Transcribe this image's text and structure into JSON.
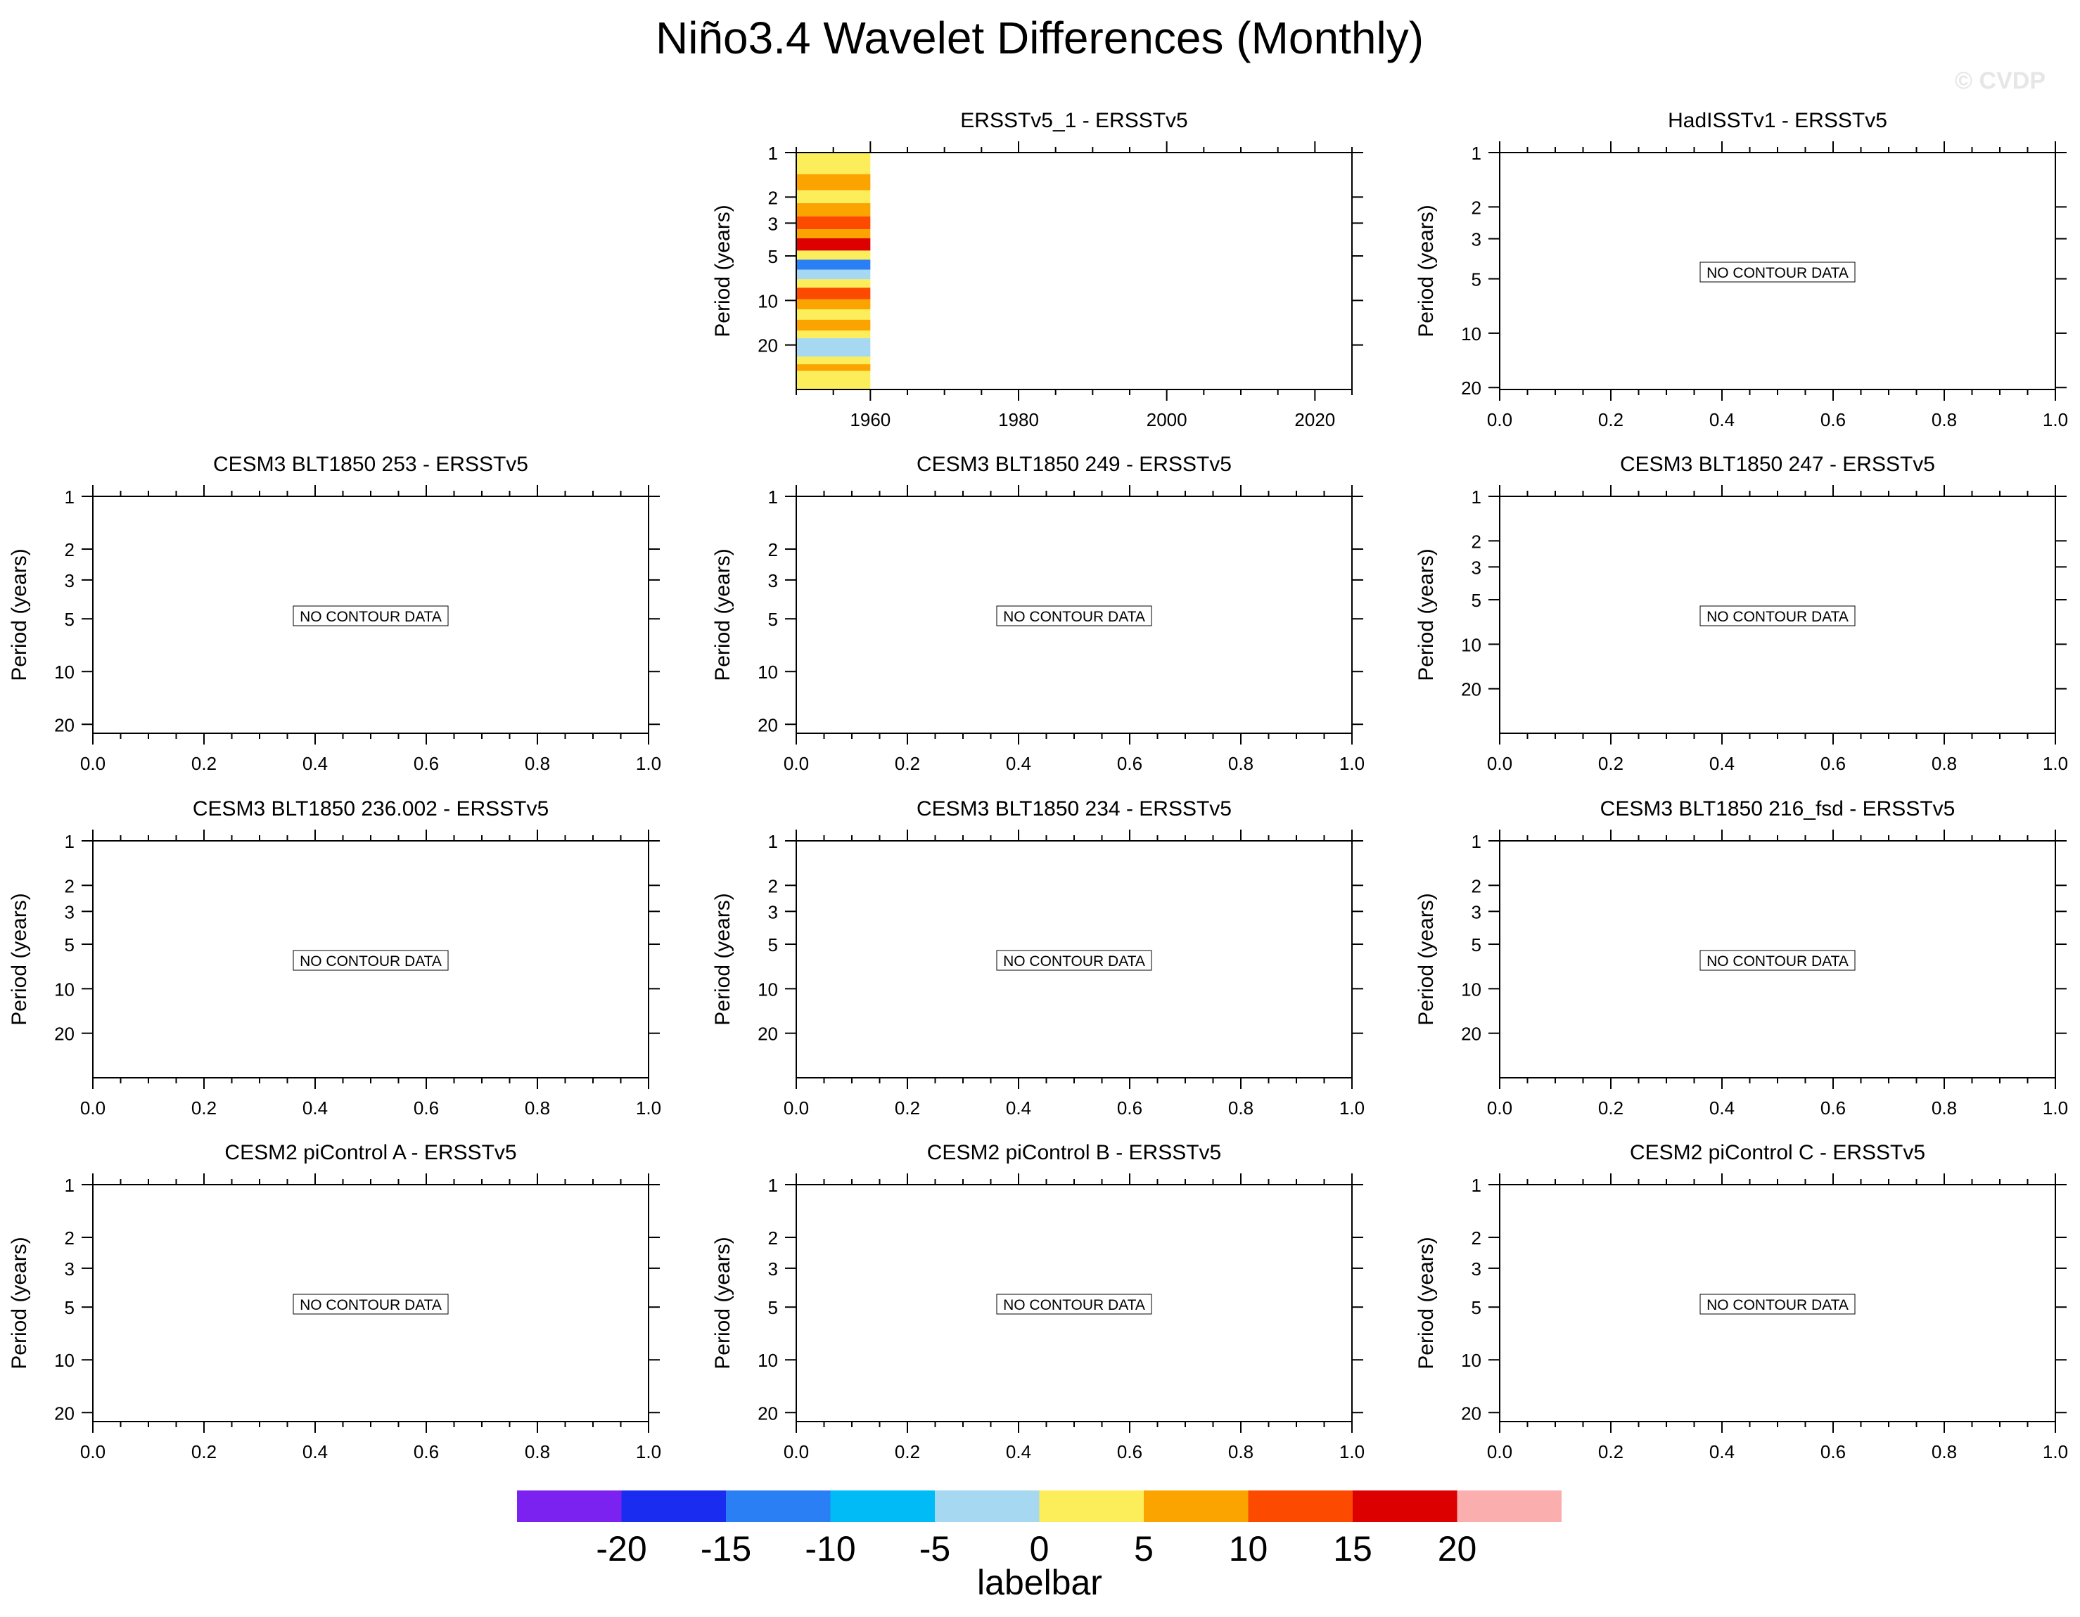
{
  "title": "Niño3.4 Wavelet Differences (Monthly)",
  "watermark": "© CVDP",
  "ylabel": "Period (years)",
  "no_data_label": "NO CONTOUR DATA",
  "colorbar": {
    "label": "labelbar",
    "colors": [
      "#7b22f0",
      "#1a2cf0",
      "#2a7ff5",
      "#00bbf5",
      "#a6d8f2",
      "#fbee5a",
      "#fba400",
      "#fc4a00",
      "#dc0000",
      "#fbaeae"
    ],
    "tick_labels": [
      "-20",
      "-15",
      "-10",
      "-5",
      "0",
      "5",
      "10",
      "15",
      "20"
    ]
  },
  "chart_data": [
    {
      "type": "heatmap",
      "title": "ERSSTv5_1 - ERSSTv5",
      "ylabel": "Period (years)",
      "x_ticks": [
        "1960",
        "1980",
        "2000",
        "2020"
      ],
      "x_tick_values": [
        1960,
        1980,
        2000,
        2020
      ],
      "xlim": [
        1950,
        2025
      ],
      "y_ticks": [
        "1",
        "2",
        "3",
        "5",
        "10",
        "20"
      ],
      "y_tick_values": [
        1,
        2,
        3,
        5,
        10,
        20
      ],
      "ylim": [
        1,
        40
      ],
      "y_scale": "log",
      "data_x_range": [
        1950,
        1960
      ],
      "bands": [
        {
          "from": 1.0,
          "to": 1.4,
          "value": 0
        },
        {
          "from": 1.4,
          "to": 1.8,
          "value": 5
        },
        {
          "from": 1.8,
          "to": 2.2,
          "value": 0
        },
        {
          "from": 2.2,
          "to": 2.7,
          "value": 5
        },
        {
          "from": 2.7,
          "to": 3.3,
          "value": 10
        },
        {
          "from": 3.3,
          "to": 3.8,
          "value": 5
        },
        {
          "from": 3.8,
          "to": 4.6,
          "value": 15
        },
        {
          "from": 4.6,
          "to": 5.3,
          "value": 0
        },
        {
          "from": 5.3,
          "to": 6.2,
          "value": -15
        },
        {
          "from": 6.2,
          "to": 7.2,
          "value": -5
        },
        {
          "from": 7.2,
          "to": 8.2,
          "value": 0
        },
        {
          "from": 8.2,
          "to": 9.8,
          "value": 10
        },
        {
          "from": 9.8,
          "to": 11.5,
          "value": 5
        },
        {
          "from": 11.5,
          "to": 13.5,
          "value": 0
        },
        {
          "from": 13.5,
          "to": 16,
          "value": 5
        },
        {
          "from": 16,
          "to": 18,
          "value": 0
        },
        {
          "from": 18,
          "to": 24,
          "value": -5
        },
        {
          "from": 24,
          "to": 27,
          "value": 0
        },
        {
          "from": 27,
          "to": 30,
          "value": 5
        },
        {
          "from": 30,
          "to": 40,
          "value": 0
        }
      ]
    },
    {
      "type": "heatmap",
      "title": "HadISSTv1 - ERSSTv5",
      "ylabel": "Period (years)",
      "no_data": true,
      "x_ticks": [
        "0.0",
        "0.2",
        "0.4",
        "0.6",
        "0.8",
        "1.0"
      ],
      "x_tick_values": [
        0,
        0.2,
        0.4,
        0.6,
        0.8,
        1.0
      ],
      "xlim": [
        0,
        1
      ],
      "y_ticks": [
        "1",
        "2",
        "3",
        "5",
        "10",
        "20"
      ],
      "y_tick_values": [
        1,
        2,
        3,
        5,
        10,
        20
      ],
      "ylim": [
        1,
        20.5
      ]
    },
    {
      "type": "heatmap",
      "title": "CESM3 BLT1850 253 - ERSSTv5",
      "ylabel": "Period (years)",
      "no_data": true,
      "x_ticks": [
        "0.0",
        "0.2",
        "0.4",
        "0.6",
        "0.8",
        "1.0"
      ],
      "x_tick_values": [
        0,
        0.2,
        0.4,
        0.6,
        0.8,
        1.0
      ],
      "xlim": [
        0,
        1
      ],
      "y_ticks": [
        "1",
        "2",
        "3",
        "5",
        "10",
        "20"
      ],
      "y_tick_values": [
        1,
        2,
        3,
        5,
        10,
        20
      ],
      "ylim": [
        1,
        22.5
      ]
    },
    {
      "type": "heatmap",
      "title": "CESM3 BLT1850 249 - ERSSTv5",
      "ylabel": "Period (years)",
      "no_data": true,
      "x_ticks": [
        "0.0",
        "0.2",
        "0.4",
        "0.6",
        "0.8",
        "1.0"
      ],
      "x_tick_values": [
        0,
        0.2,
        0.4,
        0.6,
        0.8,
        1.0
      ],
      "xlim": [
        0,
        1
      ],
      "y_ticks": [
        "1",
        "2",
        "3",
        "5",
        "10",
        "20"
      ],
      "y_tick_values": [
        1,
        2,
        3,
        5,
        10,
        20
      ],
      "ylim": [
        1,
        22.5
      ]
    },
    {
      "type": "heatmap",
      "title": "CESM3 BLT1850 247 - ERSSTv5",
      "ylabel": "Period (years)",
      "no_data": true,
      "x_ticks": [
        "0.0",
        "0.2",
        "0.4",
        "0.6",
        "0.8",
        "1.0"
      ],
      "x_tick_values": [
        0,
        0.2,
        0.4,
        0.6,
        0.8,
        1.0
      ],
      "xlim": [
        0,
        1
      ],
      "y_ticks": [
        "1",
        "2",
        "3",
        "5",
        "10",
        "20"
      ],
      "y_tick_values": [
        1,
        2,
        3,
        5,
        10,
        20
      ],
      "ylim": [
        1,
        40
      ]
    },
    {
      "type": "heatmap",
      "title": "CESM3 BLT1850 236.002 - ERSSTv5",
      "ylabel": "Period (years)",
      "no_data": true,
      "x_ticks": [
        "0.0",
        "0.2",
        "0.4",
        "0.6",
        "0.8",
        "1.0"
      ],
      "x_tick_values": [
        0,
        0.2,
        0.4,
        0.6,
        0.8,
        1.0
      ],
      "xlim": [
        0,
        1
      ],
      "y_ticks": [
        "1",
        "2",
        "3",
        "5",
        "10",
        "20"
      ],
      "y_tick_values": [
        1,
        2,
        3,
        5,
        10,
        20
      ],
      "ylim": [
        1,
        40
      ]
    },
    {
      "type": "heatmap",
      "title": "CESM3 BLT1850 234 - ERSSTv5",
      "ylabel": "Period (years)",
      "no_data": true,
      "x_ticks": [
        "0.0",
        "0.2",
        "0.4",
        "0.6",
        "0.8",
        "1.0"
      ],
      "x_tick_values": [
        0,
        0.2,
        0.4,
        0.6,
        0.8,
        1.0
      ],
      "xlim": [
        0,
        1
      ],
      "y_ticks": [
        "1",
        "2",
        "3",
        "5",
        "10",
        "20"
      ],
      "y_tick_values": [
        1,
        2,
        3,
        5,
        10,
        20
      ],
      "ylim": [
        1,
        40
      ]
    },
    {
      "type": "heatmap",
      "title": "CESM3 BLT1850 216_fsd - ERSSTv5",
      "ylabel": "Period (years)",
      "no_data": true,
      "x_ticks": [
        "0.0",
        "0.2",
        "0.4",
        "0.6",
        "0.8",
        "1.0"
      ],
      "x_tick_values": [
        0,
        0.2,
        0.4,
        0.6,
        0.8,
        1.0
      ],
      "xlim": [
        0,
        1
      ],
      "y_ticks": [
        "1",
        "2",
        "3",
        "5",
        "10",
        "20"
      ],
      "y_tick_values": [
        1,
        2,
        3,
        5,
        10,
        20
      ],
      "ylim": [
        1,
        40
      ]
    },
    {
      "type": "heatmap",
      "title": "CESM2 piControl A - ERSSTv5",
      "ylabel": "Period (years)",
      "no_data": true,
      "x_ticks": [
        "0.0",
        "0.2",
        "0.4",
        "0.6",
        "0.8",
        "1.0"
      ],
      "x_tick_values": [
        0,
        0.2,
        0.4,
        0.6,
        0.8,
        1.0
      ],
      "xlim": [
        0,
        1
      ],
      "y_ticks": [
        "1",
        "2",
        "3",
        "5",
        "10",
        "20"
      ],
      "y_tick_values": [
        1,
        2,
        3,
        5,
        10,
        20
      ],
      "ylim": [
        1,
        22.5
      ]
    },
    {
      "type": "heatmap",
      "title": "CESM2 piControl B - ERSSTv5",
      "ylabel": "Period (years)",
      "no_data": true,
      "x_ticks": [
        "0.0",
        "0.2",
        "0.4",
        "0.6",
        "0.8",
        "1.0"
      ],
      "x_tick_values": [
        0,
        0.2,
        0.4,
        0.6,
        0.8,
        1.0
      ],
      "xlim": [
        0,
        1
      ],
      "y_ticks": [
        "1",
        "2",
        "3",
        "5",
        "10",
        "20"
      ],
      "y_tick_values": [
        1,
        2,
        3,
        5,
        10,
        20
      ],
      "ylim": [
        1,
        22.5
      ]
    },
    {
      "type": "heatmap",
      "title": "CESM2 piControl C - ERSSTv5",
      "ylabel": "Period (years)",
      "no_data": true,
      "x_ticks": [
        "0.0",
        "0.2",
        "0.4",
        "0.6",
        "0.8",
        "1.0"
      ],
      "x_tick_values": [
        0,
        0.2,
        0.4,
        0.6,
        0.8,
        1.0
      ],
      "xlim": [
        0,
        1
      ],
      "y_ticks": [
        "1",
        "2",
        "3",
        "5",
        "10",
        "20"
      ],
      "y_tick_values": [
        1,
        2,
        3,
        5,
        10,
        20
      ],
      "ylim": [
        1,
        22.5
      ]
    }
  ]
}
